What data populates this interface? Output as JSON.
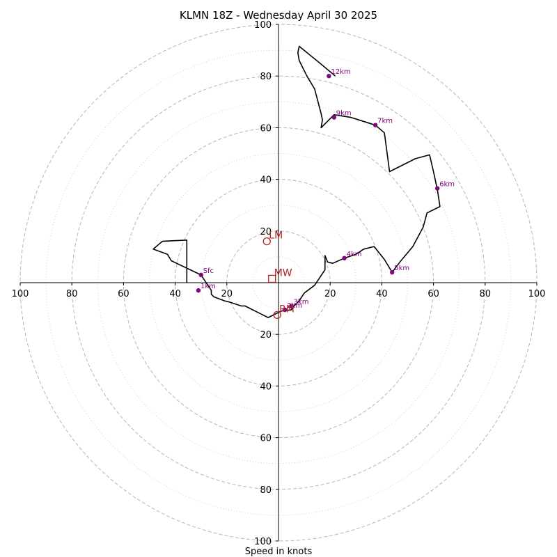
{
  "chart_data": {
    "type": "scatter",
    "title": "KLMN 18Z - Wednesday April 30 2025",
    "xlabel": "Speed in knots",
    "ylabel": "",
    "xlim": [
      -100,
      100
    ],
    "ylim": [
      -100,
      100
    ],
    "rings_major": [
      20,
      40,
      60,
      80,
      100
    ],
    "rings_minor": [
      10,
      30,
      50,
      70,
      90
    ],
    "x_ticks": [
      {
        "value": -100,
        "label": "100"
      },
      {
        "value": -80,
        "label": "80"
      },
      {
        "value": -60,
        "label": "60"
      },
      {
        "value": -40,
        "label": "40"
      },
      {
        "value": -20,
        "label": "20"
      },
      {
        "value": 20,
        "label": "20"
      },
      {
        "value": 40,
        "label": "40"
      },
      {
        "value": 60,
        "label": "60"
      },
      {
        "value": 80,
        "label": "80"
      },
      {
        "value": 100,
        "label": "100"
      }
    ],
    "y_ticks": [
      {
        "value": 100,
        "label": "100"
      },
      {
        "value": 80,
        "label": "80"
      },
      {
        "value": 60,
        "label": "60"
      },
      {
        "value": 40,
        "label": "40"
      },
      {
        "value": 20,
        "label": "20"
      },
      {
        "value": -20,
        "label": "20"
      },
      {
        "value": -40,
        "label": "40"
      },
      {
        "value": -60,
        "label": "60"
      },
      {
        "value": -80,
        "label": "80"
      },
      {
        "value": -100,
        "label": "100"
      }
    ],
    "hodograph": {
      "x": [
        -35.5,
        -35.5,
        -45,
        -48.5,
        -43,
        -41.5,
        -30,
        -26,
        -26,
        -25,
        -21,
        -19,
        -16,
        -14.5,
        -13,
        -11,
        -9,
        -4,
        -2,
        1,
        5,
        6,
        8,
        10,
        14,
        18,
        18,
        19,
        21,
        25.5,
        30,
        33,
        37,
        41,
        44,
        47,
        52,
        56,
        57.5,
        62.5,
        61.5,
        60,
        58.5,
        53,
        43,
        41,
        37.5,
        28,
        21.5,
        16.5,
        17,
        16.5,
        14,
        11,
        8,
        7.5,
        8,
        16,
        22
      ],
      "y": [
        0,
        16.5,
        16,
        13,
        11,
        8.5,
        3,
        -3,
        -4.5,
        -5.5,
        -7,
        -7.5,
        -8.5,
        -9,
        -9,
        -10,
        -11,
        -13.5,
        -12.5,
        -11,
        -10.5,
        -9,
        -7,
        -4,
        -1,
        5,
        10.5,
        8,
        7.5,
        9.5,
        11,
        13,
        14,
        9,
        4,
        8,
        14,
        21.5,
        27,
        29.5,
        36,
        43,
        49.5,
        48,
        43,
        58,
        61,
        64,
        65,
        60,
        63,
        65.5,
        75,
        80,
        86,
        89,
        91.5,
        85,
        80
      ]
    },
    "height_labels": [
      {
        "label": "Sfc",
        "x": -30,
        "y": 3
      },
      {
        "label": "1km",
        "x": -31,
        "y": -3
      },
      {
        "label": "2km",
        "x": 2.5,
        "y": -10.5
      },
      {
        "label": "3km",
        "x": 5,
        "y": -9
      },
      {
        "label": "4km",
        "x": 25.5,
        "y": 9.5
      },
      {
        "label": "5km",
        "x": 44,
        "y": 4
      },
      {
        "label": "6km",
        "x": 61.5,
        "y": 36.5
      },
      {
        "label": "7km",
        "x": 37.5,
        "y": 61
      },
      {
        "label": "9km",
        "x": 21.5,
        "y": 64
      },
      {
        "label": "12km",
        "x": 19.5,
        "y": 80
      }
    ],
    "storm_motion": [
      {
        "label": "LM",
        "marker": "circle",
        "x": -4.5,
        "y": 16
      },
      {
        "label": "MW",
        "marker": "square",
        "x": -2.5,
        "y": 1.5
      },
      {
        "label": "RM",
        "marker": "circle",
        "x": -0.5,
        "y": -12.5
      }
    ],
    "colors": {
      "trace": "#000000",
      "height_markers": "#7a0a7a",
      "height_text": "#800080",
      "storm_motion": "#b22222",
      "rings": "#b5b5b5"
    },
    "grid": true,
    "legend": "none"
  }
}
